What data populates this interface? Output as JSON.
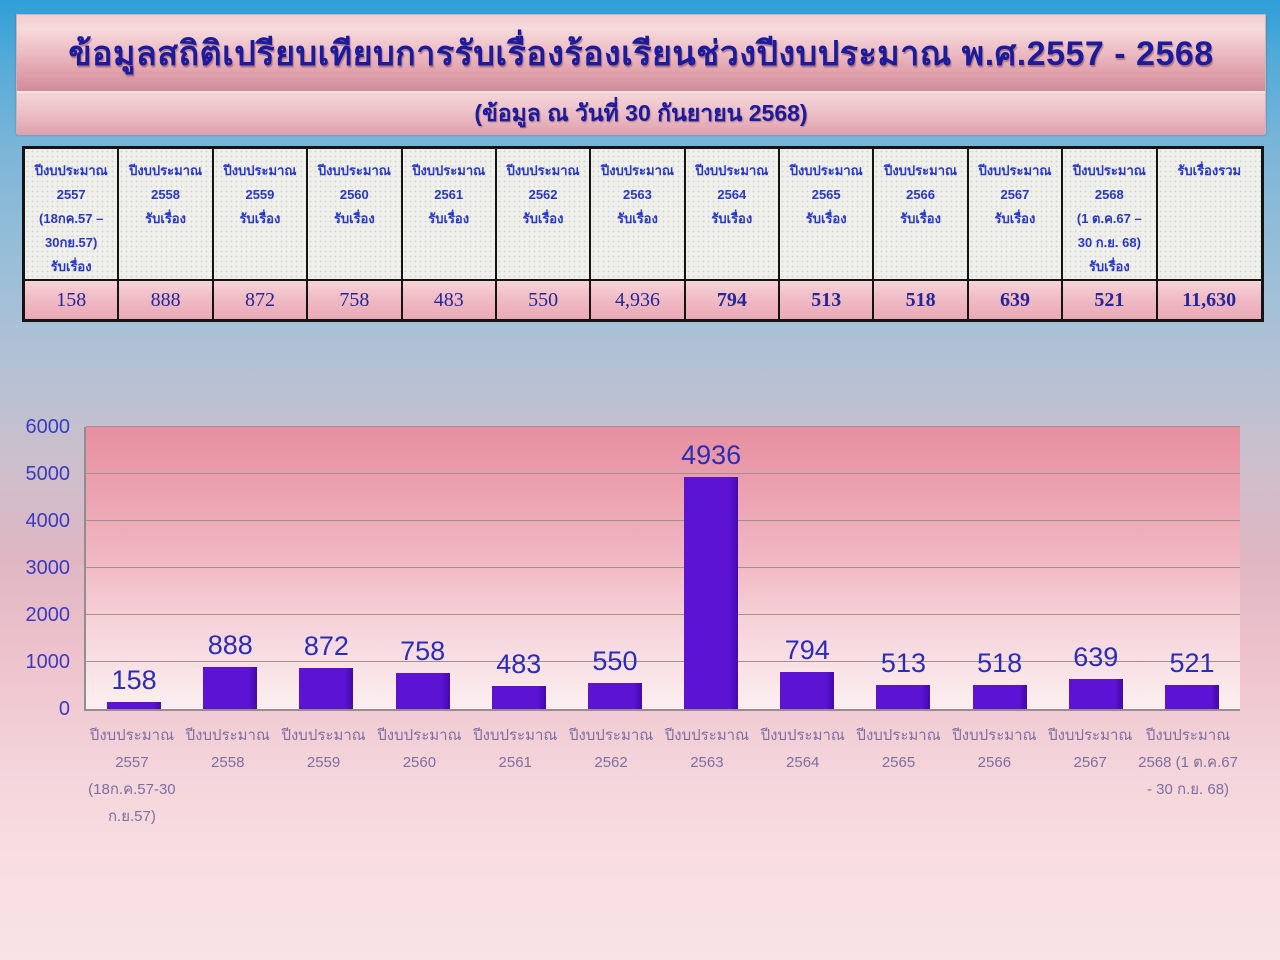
{
  "banner": {
    "title": "ข้อมูลสถิติเปรียบเทียบการรับเรื่องร้องเรียนช่วงปีงบประมาณ พ.ศ.2557 - 2568",
    "subtitle": "(ข้อมูล ณ วันที่ 30 กันยายน 2568)"
  },
  "table": {
    "headers": [
      {
        "lines": [
          "ปีงบประมาณ",
          "2557",
          "(18กค.57 –",
          "30กย.57)",
          "รับเรื่อง"
        ]
      },
      {
        "lines": [
          "ปีงบประมาณ",
          "2558",
          "รับเรื่อง"
        ]
      },
      {
        "lines": [
          "ปีงบประมาณ",
          "2559",
          "รับเรื่อง"
        ]
      },
      {
        "lines": [
          "ปีงบประมาณ",
          "2560",
          "รับเรื่อง"
        ]
      },
      {
        "lines": [
          "ปีงบประมาณ",
          "2561",
          "รับเรื่อง"
        ]
      },
      {
        "lines": [
          "ปีงบประมาณ",
          "2562",
          "รับเรื่อง"
        ]
      },
      {
        "lines": [
          "ปีงบประมาณ",
          "2563",
          "รับเรื่อง"
        ]
      },
      {
        "lines": [
          "ปีงบประมาณ",
          "2564",
          "รับเรื่อง"
        ]
      },
      {
        "lines": [
          "ปีงบประมาณ",
          "2565",
          "รับเรื่อง"
        ]
      },
      {
        "lines": [
          "ปีงบประมาณ",
          "2566",
          "รับเรื่อง"
        ]
      },
      {
        "lines": [
          "ปีงบประมาณ",
          "2567",
          "รับเรื่อง"
        ]
      },
      {
        "lines": [
          "ปีงบประมาณ",
          "2568",
          "(1 ต.ค.67 –",
          "30 ก.ย. 68)",
          "รับเรื่อง"
        ]
      },
      {
        "lines": [
          "รับเรื่องรวม"
        ]
      }
    ],
    "values": [
      "158",
      "888",
      "872",
      "758",
      "483",
      "550",
      "4,936",
      "794",
      "513",
      "518",
      "639",
      "521",
      "11,630"
    ],
    "bold": [
      false,
      false,
      false,
      false,
      false,
      false,
      false,
      true,
      true,
      true,
      true,
      true,
      true
    ]
  },
  "chart_data": {
    "type": "bar",
    "title": "",
    "categories": [
      "ปีงบประมาณ 2557 (18ก.ค.57-30 ก.ย.57)",
      "ปีงบประมาณ 2558",
      "ปีงบประมาณ 2559",
      "ปีงบประมาณ 2560",
      "ปีงบประมาณ 2561",
      "ปีงบประมาณ 2562",
      "ปีงบประมาณ 2563",
      "ปีงบประมาณ 2564",
      "ปีงบประมาณ 2565",
      "ปีงบประมาณ 2566",
      "ปีงบประมาณ 2567",
      "ปีงบประมาณ 2568 (1 ต.ค.67 - 30 ก.ย. 68)"
    ],
    "category_lines": [
      [
        "ปีงบประมาณ",
        "2557",
        "(18ก.ค.57-30",
        "ก.ย.57)"
      ],
      [
        "ปีงบประมาณ",
        "2558"
      ],
      [
        "ปีงบประมาณ",
        "2559"
      ],
      [
        "ปีงบประมาณ",
        "2560"
      ],
      [
        "ปีงบประมาณ",
        "2561"
      ],
      [
        "ปีงบประมาณ",
        "2562"
      ],
      [
        "ปีงบประมาณ",
        "2563"
      ],
      [
        "ปีงบประมาณ",
        "2564"
      ],
      [
        "ปีงบประมาณ",
        "2565"
      ],
      [
        "ปีงบประมาณ",
        "2566"
      ],
      [
        "ปีงบประมาณ",
        "2567"
      ],
      [
        "ปีงบประมาณ",
        "2568 (1 ต.ค.67",
        "- 30 ก.ย. 68)"
      ]
    ],
    "values": [
      158,
      888,
      872,
      758,
      483,
      550,
      4936,
      794,
      513,
      518,
      639,
      521
    ],
    "bar_labels": [
      "158",
      "888",
      "872",
      "758",
      "483",
      "550",
      "4936",
      "794",
      "513",
      "518",
      "639",
      "521"
    ],
    "total": "11,630",
    "xlabel": "",
    "ylabel": "",
    "ylim": [
      0,
      6000
    ],
    "yticks": [
      0,
      1000,
      2000,
      3000,
      4000,
      5000,
      6000
    ],
    "grid": true,
    "legend": false,
    "bar_color": "#5c13d4",
    "bar_label_color": "#2c2cb6",
    "axis_label_color": "#3a3ac2",
    "category_label_color": "#7e6f9f"
  }
}
